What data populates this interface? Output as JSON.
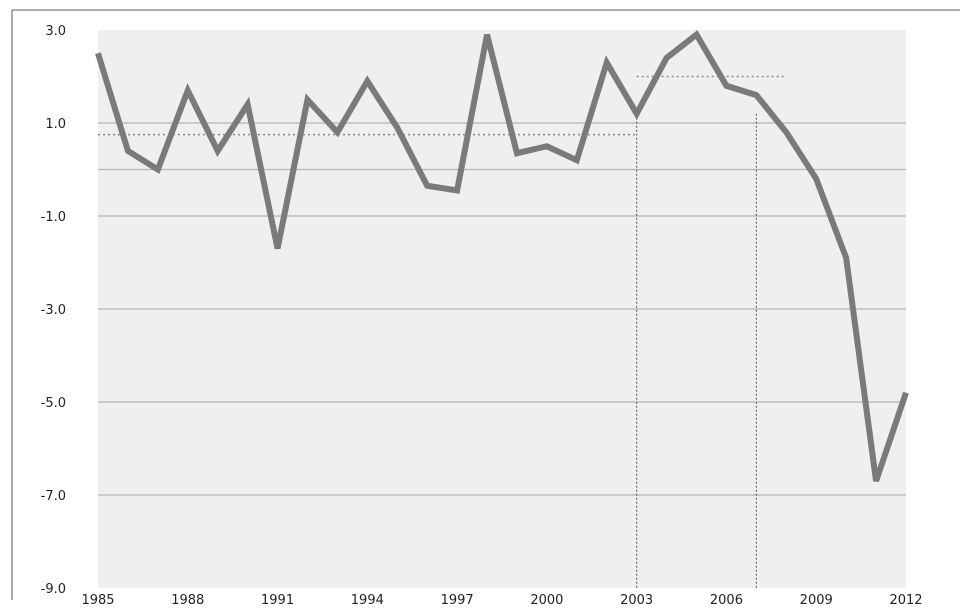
{
  "chart_data": {
    "type": "line",
    "title": "",
    "xlabel": "",
    "ylabel": "",
    "x": [
      1985,
      1986,
      1987,
      1988,
      1989,
      1990,
      1991,
      1992,
      1993,
      1994,
      1995,
      1996,
      1997,
      1998,
      1999,
      2000,
      2001,
      2002,
      2003,
      2004,
      2005,
      2006,
      2007,
      2008,
      2009,
      2010,
      2011,
      2012
    ],
    "series": [
      {
        "values": [
          2.5,
          0.4,
          0.0,
          1.7,
          0.4,
          1.4,
          -1.7,
          1.5,
          0.8,
          1.9,
          0.9,
          -0.35,
          -0.45,
          2.9,
          0.35,
          0.5,
          0.2,
          2.3,
          1.2,
          2.4,
          2.9,
          1.8,
          1.6,
          0.8,
          -0.2,
          -1.9,
          -6.7,
          -4.8
        ]
      }
    ],
    "xticks": [
      "1985",
      "1988",
      "1991",
      "1994",
      "1997",
      "2000",
      "2003",
      "2006",
      "2009",
      "2012"
    ],
    "yticks": [
      "3.0",
      "1.0",
      "-1.0",
      "-3.0",
      "-5.0",
      "-7.0",
      "-9.0"
    ],
    "ylim": [
      -9,
      3
    ],
    "xlim": [
      1985,
      2012
    ],
    "grid": true,
    "extra_gridlines_y": [
      0
    ],
    "reference_lines": {
      "mean_segments": [
        {
          "x_start": 1985,
          "x_end": 2003,
          "y": 0.75
        },
        {
          "x_start": 2003,
          "x_end": 2008,
          "y": 2.0
        }
      ],
      "vertical_markers": [
        2003,
        2007
      ]
    },
    "colors": {
      "line": "#7a7a7a",
      "plot_background": "#efefef",
      "gridline": "#b5b5b5",
      "reference": "#8a8a8a"
    }
  }
}
